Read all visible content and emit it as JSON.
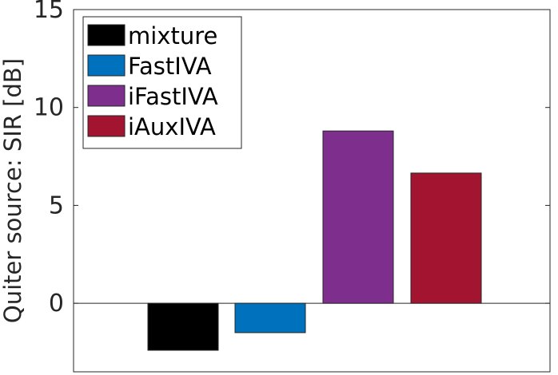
{
  "chart_data": {
    "type": "bar",
    "title": "",
    "xlabel": "",
    "ylabel": "Quiter source: SIR [dB]",
    "ylim": [
      -3.5,
      15
    ],
    "yticks": [
      0,
      5,
      10,
      15
    ],
    "grid": false,
    "legend_position": "top-left",
    "series": [
      {
        "name": "mixture",
        "value": -2.4,
        "color": "#000000"
      },
      {
        "name": "FastIVA",
        "value": -1.5,
        "color": "#0072BD"
      },
      {
        "name": "iFastIVA",
        "value": 8.8,
        "color": "#7E2F8E"
      },
      {
        "name": "iAuxIVA",
        "value": 6.65,
        "color": "#A2142F"
      }
    ]
  }
}
